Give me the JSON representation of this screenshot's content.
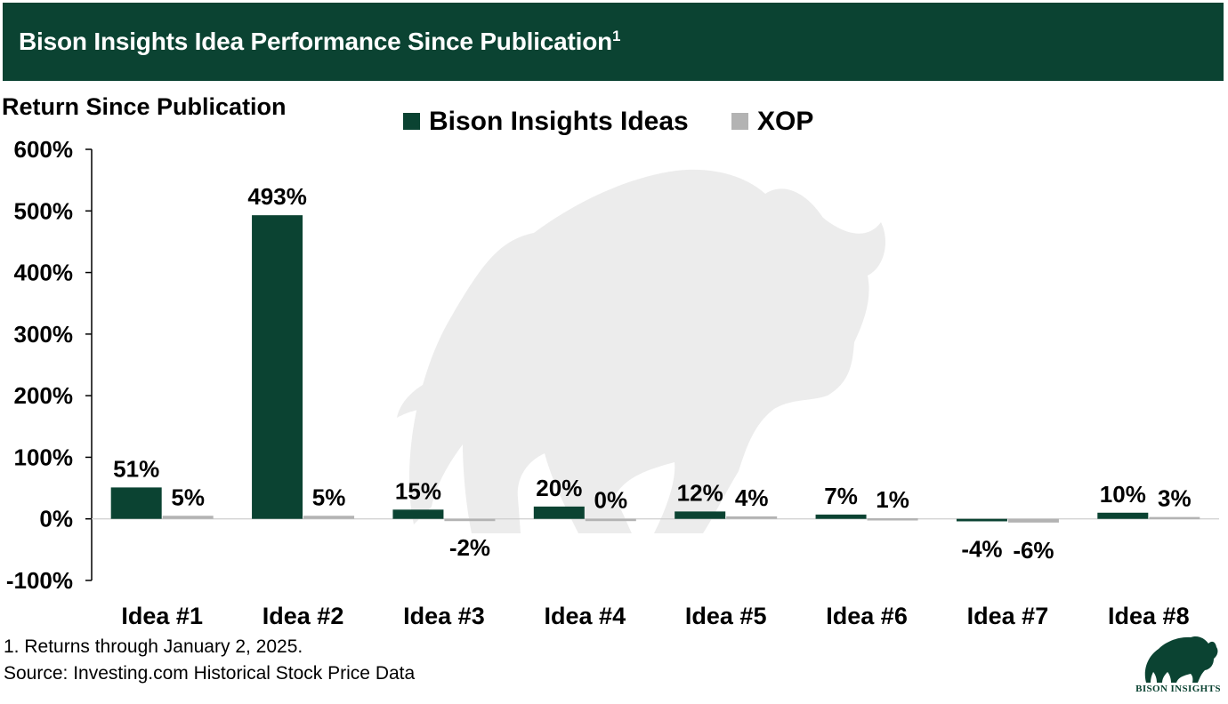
{
  "header": {
    "title": "Bison Insights Idea Performance Since Publication",
    "title_superscript": "1"
  },
  "colors": {
    "brand_green": "#0b4332",
    "xop_gray": "#b3b3b3",
    "watermark": "#ececec"
  },
  "chart_data": {
    "type": "bar",
    "title": "",
    "ylabel": "Return Since Publication",
    "xlabel": "",
    "ylim": [
      -100,
      600
    ],
    "yticks": [
      -100,
      0,
      100,
      200,
      300,
      400,
      500,
      600
    ],
    "ytick_labels": [
      "-100%",
      "0%",
      "100%",
      "200%",
      "300%",
      "400%",
      "500%",
      "600%"
    ],
    "categories": [
      "Idea #1",
      "Idea #2",
      "Idea #3",
      "Idea #4",
      "Idea #5",
      "Idea #6",
      "Idea #7",
      "Idea #8"
    ],
    "series": [
      {
        "name": "Bison Insights Ideas",
        "color": "#0b4332",
        "values": [
          51,
          493,
          15,
          20,
          12,
          7,
          -4,
          10
        ],
        "labels": [
          "51%",
          "493%",
          "15%",
          "20%",
          "12%",
          "7%",
          "-4%",
          "10%"
        ]
      },
      {
        "name": "XOP",
        "color": "#b3b3b3",
        "values": [
          5,
          5,
          -2,
          0,
          4,
          1,
          -6,
          3
        ],
        "labels": [
          "5%",
          "5%",
          "-2%",
          "0%",
          "4%",
          "1%",
          "-6%",
          "3%"
        ]
      }
    ],
    "legend_position": "top-center",
    "grid": false
  },
  "footnotes": {
    "note": "1. Returns through January 2, 2025.",
    "source": "Source: Investing.com Historical Stock Price Data"
  },
  "logo": {
    "text": "BISON INSIGHTS"
  }
}
